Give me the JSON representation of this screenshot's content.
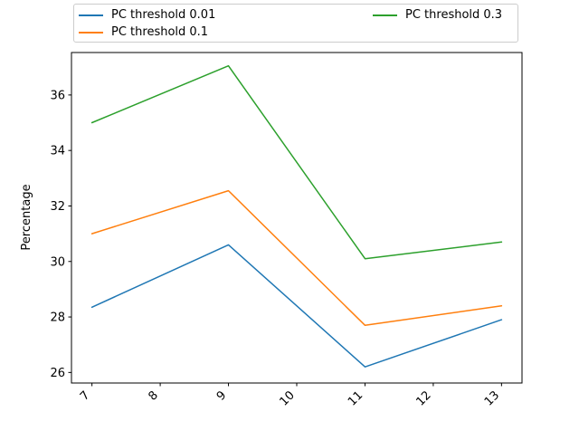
{
  "figure": {
    "background": "#ffffff",
    "axis_color": "#000000"
  },
  "chart_data": {
    "type": "line",
    "title": "",
    "xlabel": "",
    "ylabel": "Percentage",
    "x": [
      7,
      9,
      11,
      13
    ],
    "series": [
      {
        "name": "PC threshold 0.01",
        "color": "#1f77b4",
        "values": [
          28.35,
          30.6,
          26.2,
          27.9
        ]
      },
      {
        "name": "PC threshold 0.1",
        "color": "#ff7f0e",
        "values": [
          31.0,
          32.55,
          27.7,
          28.4
        ]
      },
      {
        "name": "PC threshold 0.3",
        "color": "#2ca02c",
        "values": [
          35.0,
          37.05,
          30.1,
          30.7
        ]
      }
    ],
    "xlim": [
      6.7,
      13.3
    ],
    "ylim": [
      25.62,
      37.53
    ],
    "x_ticks": [
      {
        "value": 7,
        "label": "7"
      },
      {
        "value": 8,
        "label": "8"
      },
      {
        "value": 9,
        "label": "9"
      },
      {
        "value": 10,
        "label": "10"
      },
      {
        "value": 11,
        "label": "11"
      },
      {
        "value": 12,
        "label": "12"
      },
      {
        "value": 13,
        "label": "13"
      }
    ],
    "y_ticks": [
      {
        "value": 26,
        "label": "26"
      },
      {
        "value": 28,
        "label": "28"
      },
      {
        "value": 30,
        "label": "30"
      },
      {
        "value": 32,
        "label": "32"
      },
      {
        "value": 34,
        "label": "34"
      },
      {
        "value": 36,
        "label": "36"
      }
    ],
    "x_tick_rotation": 45,
    "grid": false,
    "legend": {
      "position": "above-axes",
      "columns": 2,
      "entries": [
        "PC threshold 0.01",
        "PC threshold 0.1",
        "PC threshold 0.3"
      ]
    }
  }
}
